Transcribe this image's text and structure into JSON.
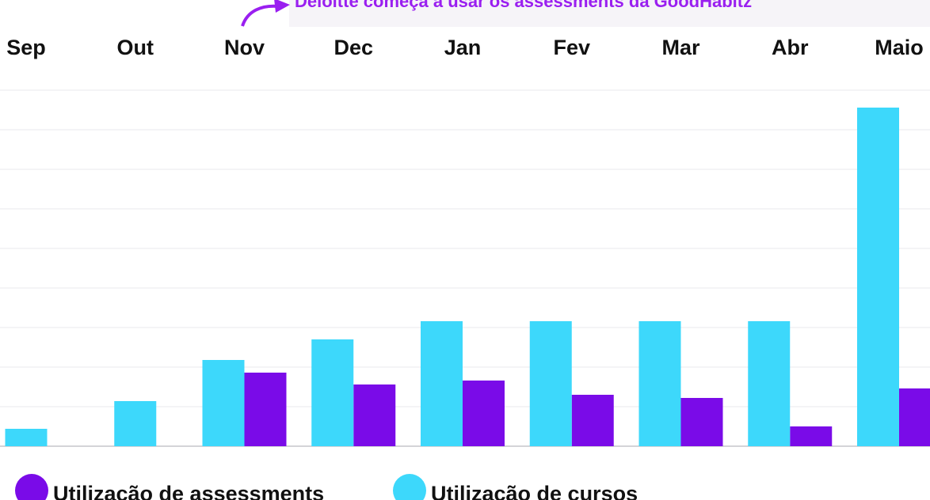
{
  "chart_data": {
    "type": "bar",
    "annotation": "Deloitte começa a usar os assessments da GoodHabitz",
    "categories": [
      "Sep",
      "Out",
      "Nov",
      "Dec",
      "Jan",
      "Fev",
      "Mar",
      "Abr",
      "Maio"
    ],
    "series": [
      {
        "name": "Utilização de assessments",
        "color": "#7a0be8",
        "values": [
          null,
          null,
          1.86,
          1.56,
          1.66,
          1.3,
          1.22,
          0.5,
          1.46
        ]
      },
      {
        "name": "Utilização de cursos",
        "color": "#3dd8fb",
        "values": [
          0.44,
          1.14,
          2.18,
          2.7,
          3.16,
          3.16,
          3.16,
          3.16,
          8.56
        ]
      }
    ],
    "ylim": [
      0,
      9
    ],
    "yticks": [
      0,
      1,
      2,
      3,
      4,
      5,
      6,
      7,
      8,
      9
    ],
    "grid": true
  }
}
